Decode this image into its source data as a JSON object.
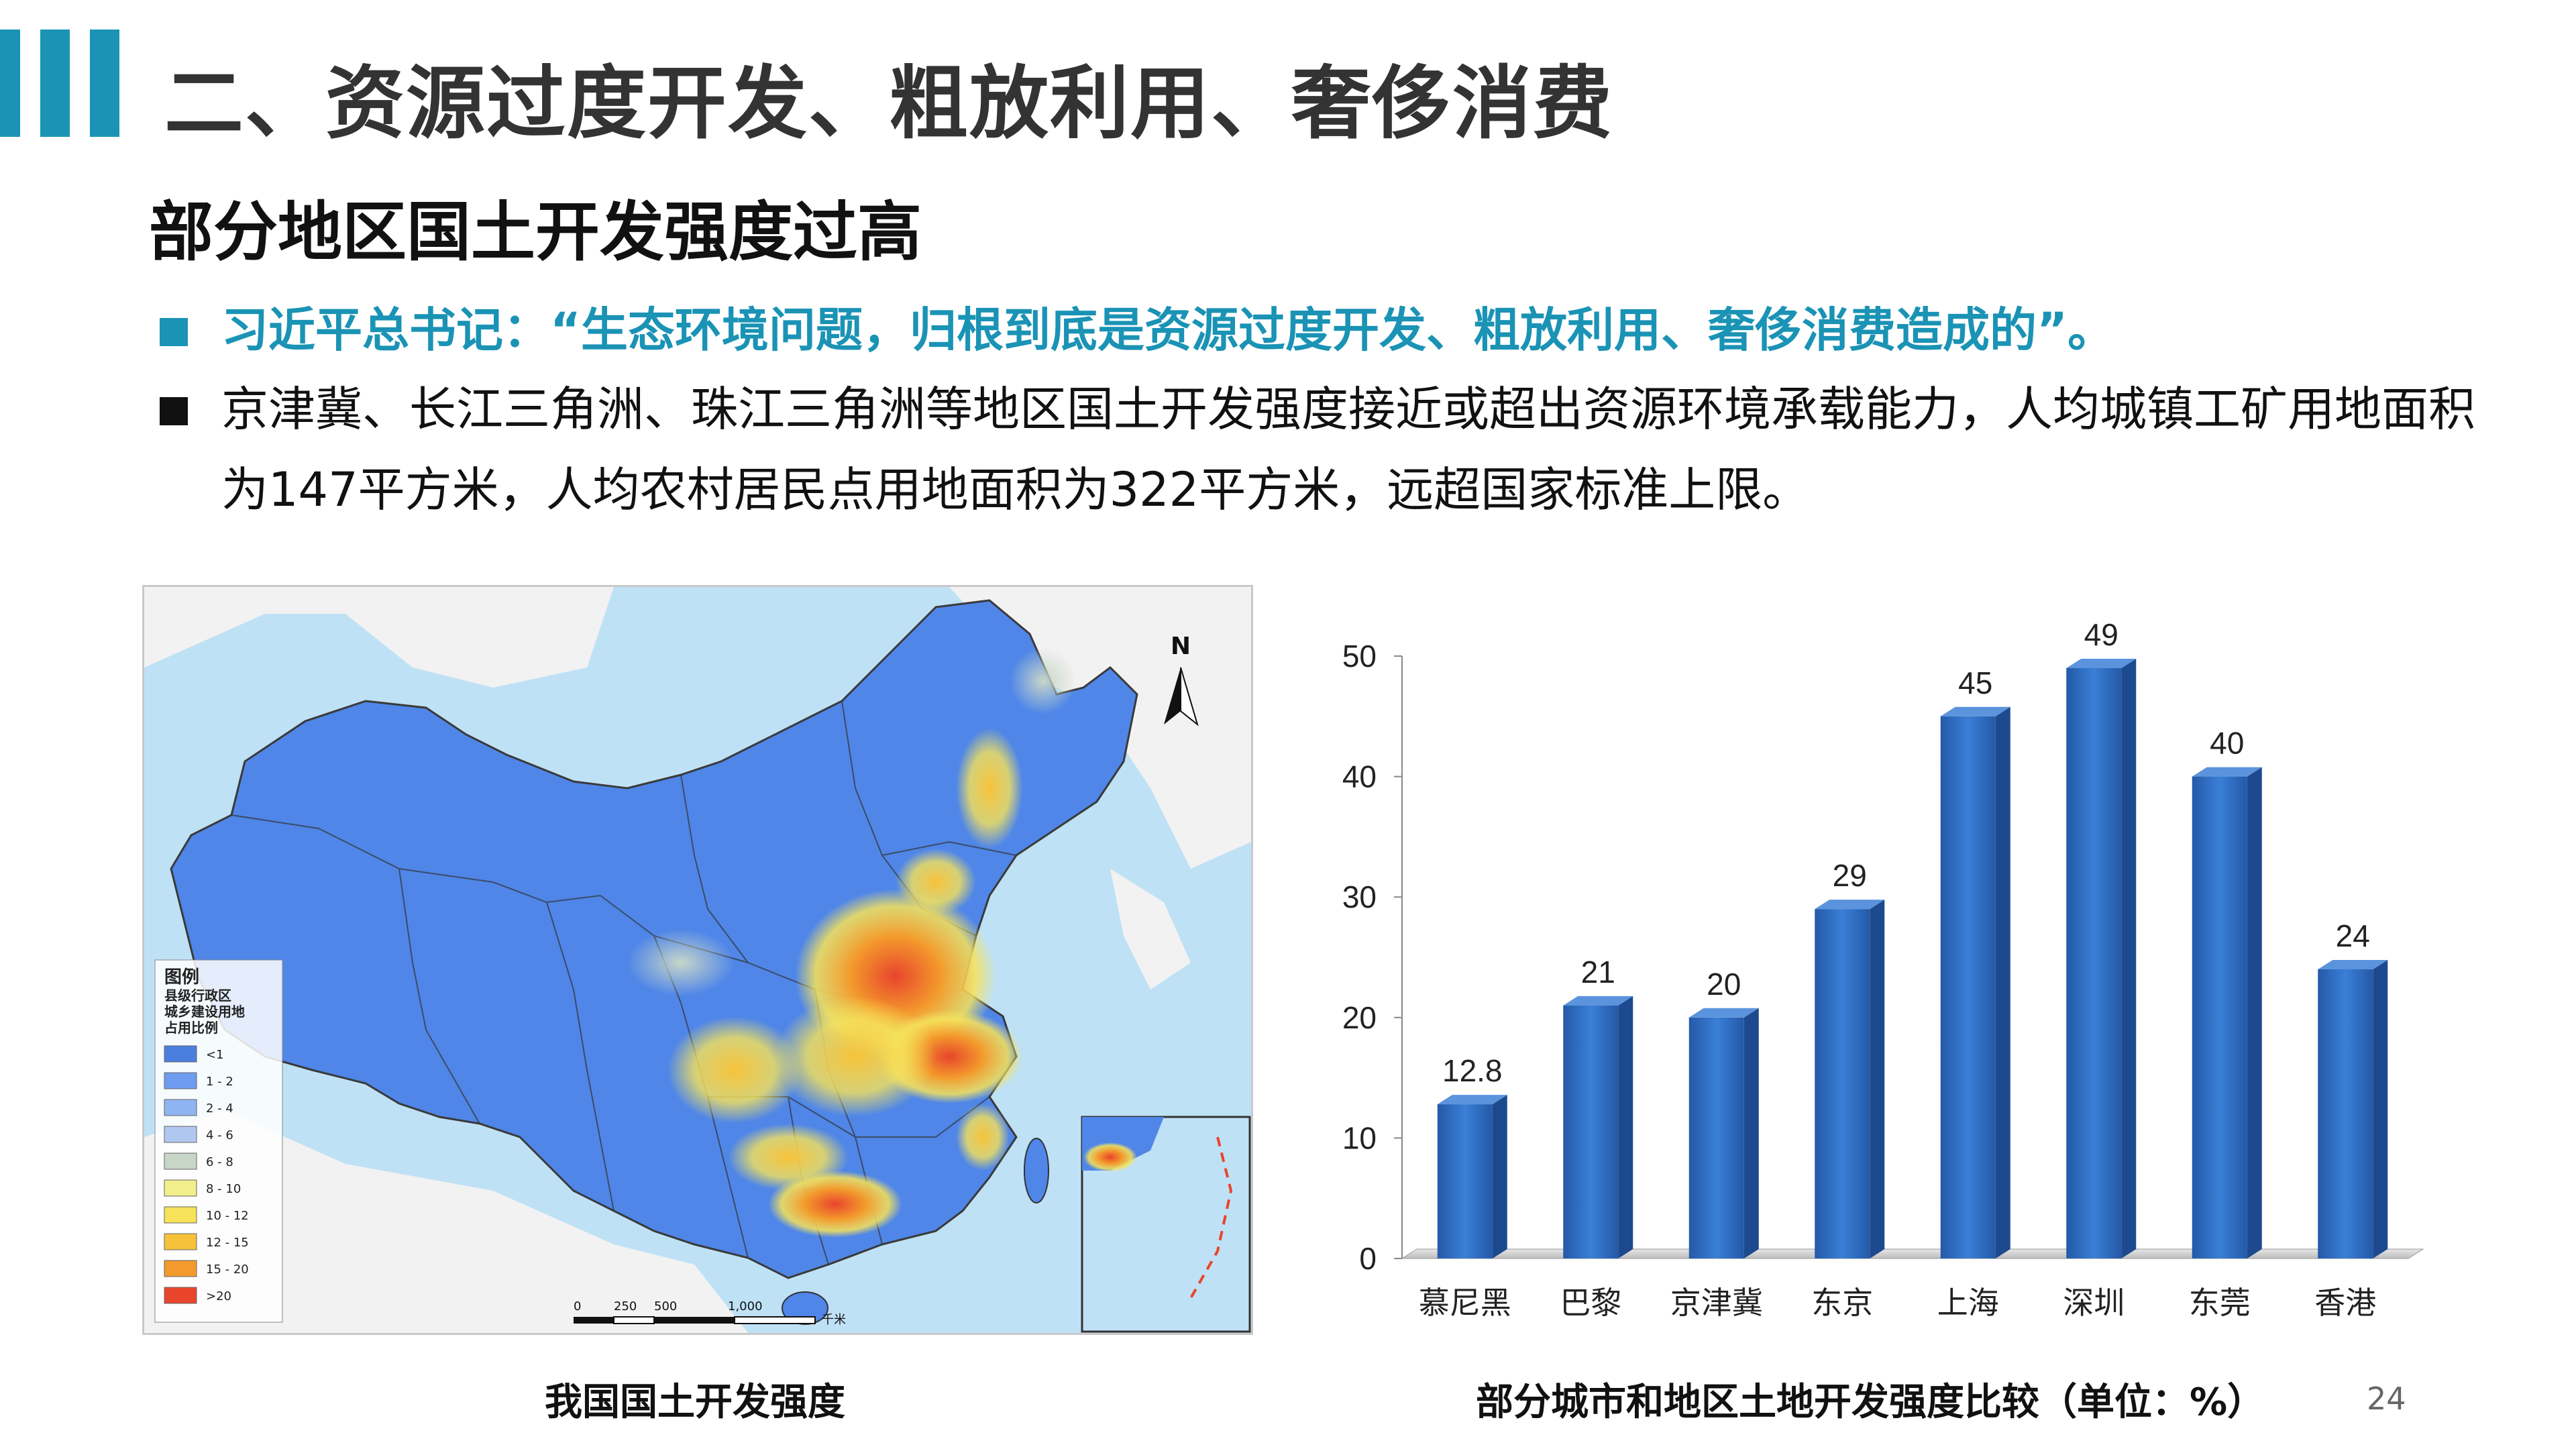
{
  "header": {
    "title": "二、资源过度开发、粗放利用、奢侈消费",
    "subtitle": "部分地区国土开发强度过高"
  },
  "bullets": [
    {
      "text": "习近平总书记：“生态环境问题，归根到底是资源过度开发、粗放利用、奢侈消费造成的”。",
      "color": "#1a93b5"
    },
    {
      "text": "京津冀、长江三角洲、珠江三角洲等地区国土开发强度接近或超出资源环境承载能力，人均城镇工矿用地面积为147平方米，人均农村居民点用地面积为322平方米，远超国家标准上限。",
      "color": "#111111"
    }
  ],
  "map": {
    "caption": "我国国土开发强度",
    "north_label": "N",
    "legend": {
      "title_lines": [
        "图例",
        "县级行政区",
        "城乡建设用地",
        "占用比例"
      ],
      "items": [
        {
          "label": "<1",
          "color": "#4a7fe0"
        },
        {
          "label": "1 - 2",
          "color": "#6d9cf0"
        },
        {
          "label": "2 - 4",
          "color": "#8fb4f2"
        },
        {
          "label": "4 - 6",
          "color": "#b0c8f0"
        },
        {
          "label": "6 - 8",
          "color": "#c8d6c8"
        },
        {
          "label": "8 - 10",
          "color": "#f0ef8a"
        },
        {
          "label": "10 - 12",
          "color": "#f7e35a"
        },
        {
          "label": "12 - 15",
          "color": "#f7c23a"
        },
        {
          "label": "15 - 20",
          "color": "#f39a2c"
        },
        {
          "label": ">20",
          "color": "#e8452c"
        }
      ]
    },
    "scale_labels": [
      "0",
      "250",
      "500",
      "1,000",
      "千米"
    ],
    "land_color": "#4f86e8",
    "sea_color": "#bfe1f5"
  },
  "chart_data": {
    "type": "bar",
    "title": "部分城市和地区土地开发强度比较（单位：%）",
    "categories": [
      "慕尼黑",
      "巴黎",
      "京津冀",
      "东京",
      "上海",
      "深圳",
      "东莞",
      "香港"
    ],
    "values": [
      12.8,
      21,
      20,
      29,
      45,
      49,
      40,
      24
    ],
    "value_labels": [
      "12.8",
      "21",
      "20",
      "29",
      "45",
      "49",
      "40",
      "24"
    ],
    "ylim": [
      0,
      50
    ],
    "yticks": [
      "0",
      "10",
      "20",
      "30",
      "40",
      "50"
    ],
    "bar_color": "#2f6fc4",
    "grid": false
  },
  "page_number": "24"
}
